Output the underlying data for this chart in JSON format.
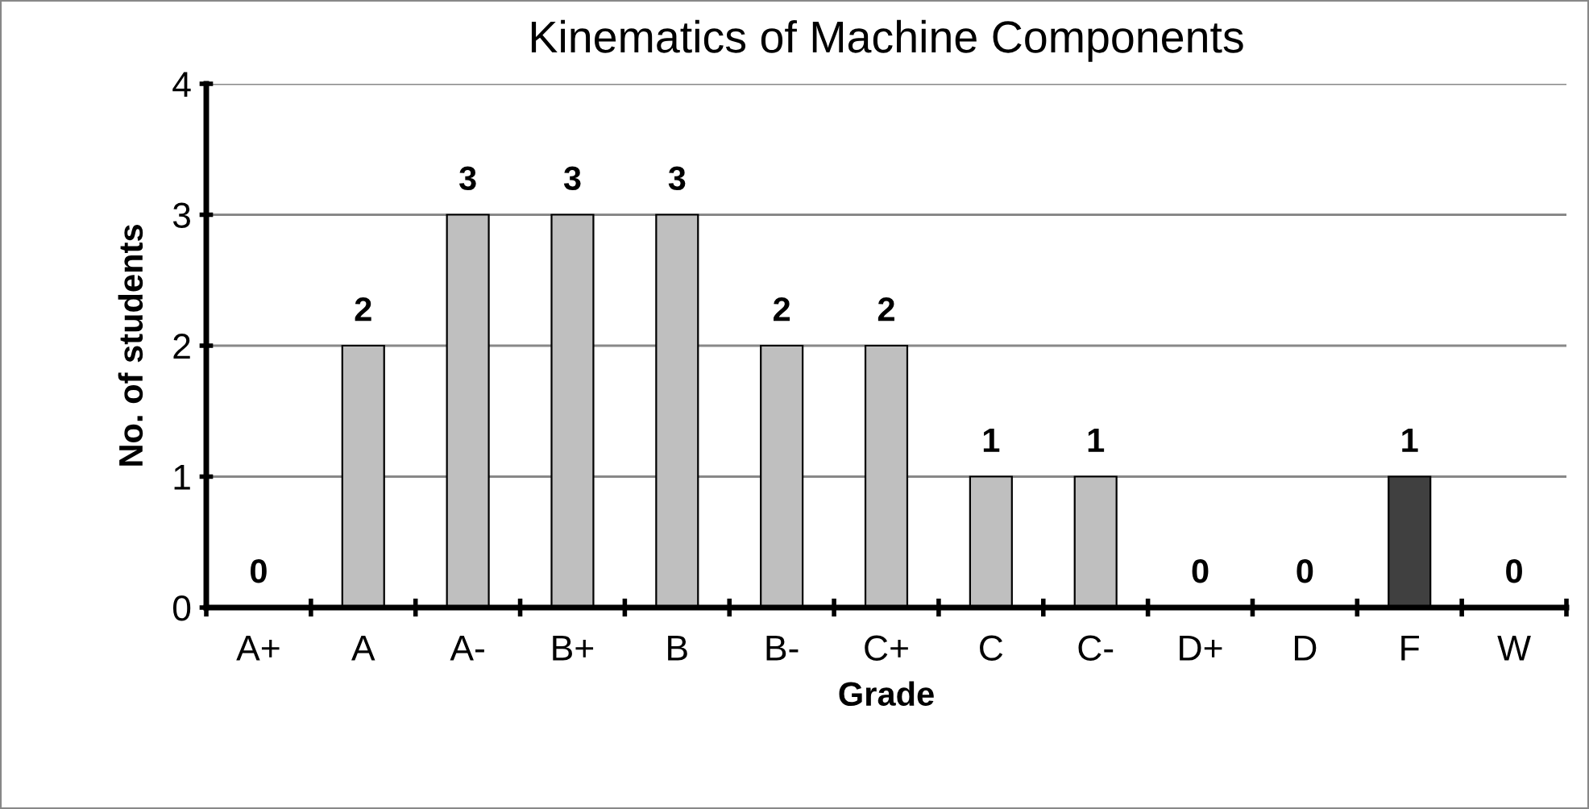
{
  "chart_data": {
    "type": "bar",
    "title": "Kinematics of Machine Components",
    "xlabel": "Grade",
    "ylabel": "No. of students",
    "categories": [
      "A+",
      "A",
      "A-",
      "B+",
      "B",
      "B-",
      "C+",
      "C",
      "C-",
      "D+",
      "D",
      "F",
      "W"
    ],
    "values": [
      0,
      2,
      3,
      3,
      3,
      2,
      2,
      1,
      1,
      0,
      0,
      1,
      0
    ],
    "colors": [
      "#bfbfbf",
      "#bfbfbf",
      "#bfbfbf",
      "#bfbfbf",
      "#bfbfbf",
      "#bfbfbf",
      "#bfbfbf",
      "#bfbfbf",
      "#bfbfbf",
      "#bfbfbf",
      "#bfbfbf",
      "#404040",
      "#bfbfbf"
    ],
    "ylim": [
      0,
      4
    ],
    "yticks": [
      0,
      1,
      2,
      3,
      4
    ],
    "grid": "y",
    "data_labels": true
  }
}
